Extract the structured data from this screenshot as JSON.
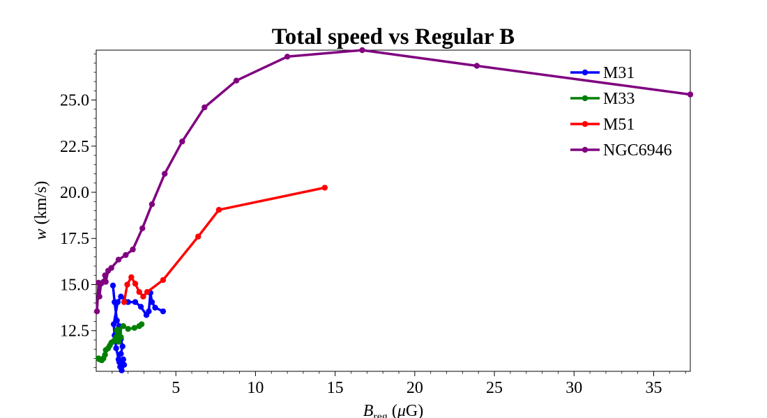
{
  "chart_data": {
    "type": "line",
    "title": "Total speed vs Regular B",
    "xlabel": "B_reg (μG)",
    "ylabel": "w (km/s)",
    "xlim": [
      0,
      37.3
    ],
    "ylim": [
      10.3,
      27.7
    ],
    "xticks": [
      5,
      10,
      15,
      20,
      25,
      30,
      35
    ],
    "yticks": [
      12.5,
      15.0,
      17.5,
      20.0,
      22.5,
      25.0
    ],
    "grid": false,
    "legend_position": "top-right",
    "series": [
      {
        "name": "M31",
        "color": "#0000ff",
        "x": [
          1.05,
          1.15,
          1.3,
          1.45,
          1.55,
          1.65,
          1.55,
          1.4,
          1.5,
          1.65,
          1.7,
          1.75,
          1.6,
          1.45,
          1.25,
          1.15,
          1.1,
          1.35,
          1.55,
          2.0,
          2.45,
          2.8,
          3.15,
          3.3,
          3.4,
          3.5,
          3.7,
          4.2
        ],
        "y": [
          14.95,
          14.05,
          13.05,
          12.75,
          12.05,
          11.65,
          11.25,
          10.95,
          10.55,
          10.75,
          10.95,
          10.65,
          10.35,
          10.8,
          11.55,
          12.25,
          12.85,
          14.05,
          14.35,
          14.05,
          14.05,
          13.8,
          13.35,
          13.55,
          14.55,
          14.05,
          13.75,
          13.55
        ]
      },
      {
        "name": "M33",
        "color": "#008000",
        "x": [
          0.15,
          0.2,
          0.35,
          0.45,
          0.55,
          0.6,
          0.75,
          0.85,
          0.95,
          1.1,
          1.25,
          1.3,
          1.4,
          1.55,
          1.45,
          1.35,
          1.3,
          1.45,
          1.7,
          2.0,
          2.4,
          2.7,
          2.85
        ],
        "y": [
          11.0,
          10.95,
          10.9,
          11.0,
          11.2,
          11.45,
          11.55,
          11.7,
          11.85,
          11.95,
          12.15,
          12.55,
          11.9,
          12.15,
          12.4,
          12.25,
          12.5,
          12.55,
          12.75,
          12.6,
          12.65,
          12.75,
          12.85
        ]
      },
      {
        "name": "M51",
        "color": "#ff0000",
        "x": [
          1.75,
          1.95,
          2.2,
          2.45,
          2.7,
          2.95,
          3.2,
          4.2,
          6.4,
          7.7,
          14.35
        ],
        "y": [
          14.05,
          15.0,
          15.4,
          15.05,
          14.6,
          14.35,
          14.6,
          15.25,
          17.6,
          19.05,
          20.25
        ]
      },
      {
        "name": "NGC6946",
        "color": "#800080",
        "x": [
          0.05,
          0.15,
          0.2,
          0.3,
          0.45,
          0.55,
          0.6,
          0.75,
          0.95,
          1.4,
          1.85,
          2.3,
          2.9,
          3.5,
          4.3,
          5.4,
          6.8,
          8.8,
          12.0,
          16.7,
          23.9,
          37.3
        ],
        "y": [
          13.55,
          15.1,
          14.35,
          15.05,
          15.15,
          15.5,
          15.15,
          15.75,
          15.9,
          16.35,
          16.6,
          16.9,
          18.05,
          19.35,
          21.0,
          22.75,
          24.6,
          26.05,
          27.35,
          27.7,
          26.85,
          25.3
        ]
      }
    ]
  }
}
